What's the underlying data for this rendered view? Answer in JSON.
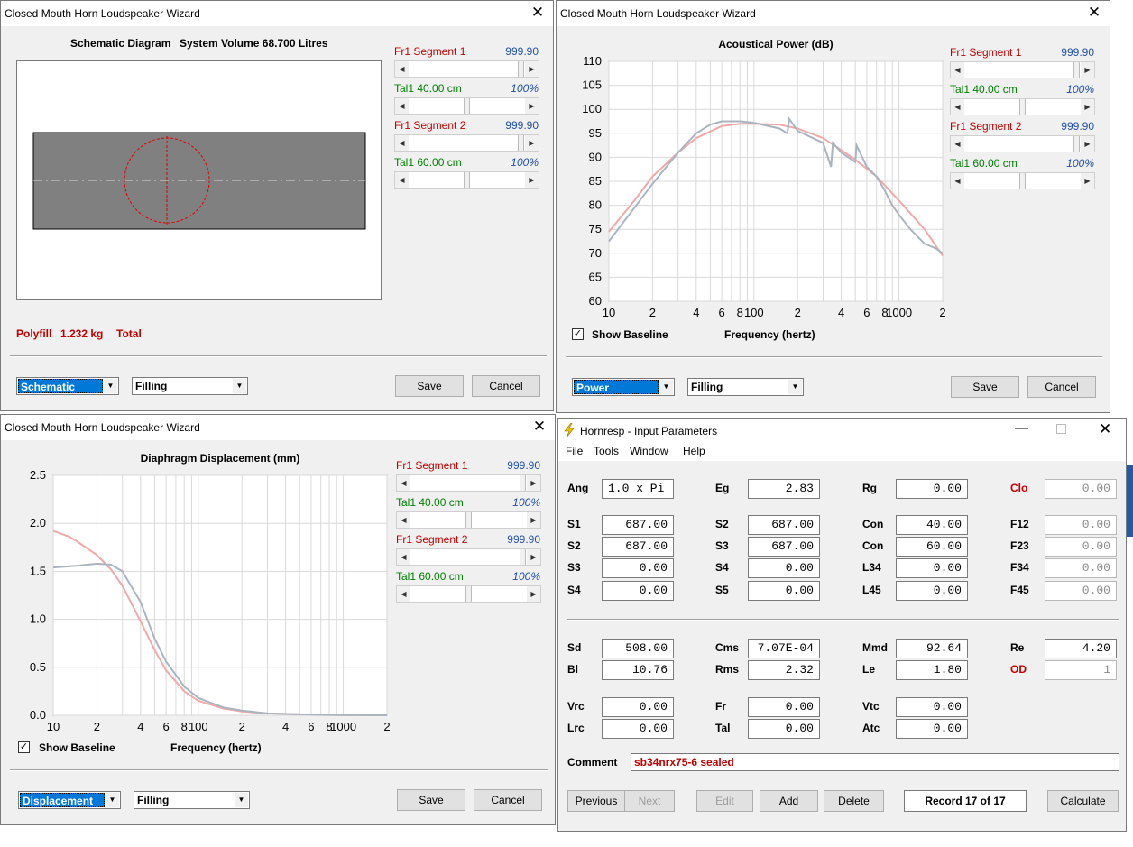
{
  "win1": {
    "title": "Closed Mouth Horn Loudspeaker Wizard",
    "heading_a": "Schematic Diagram",
    "heading_b": "System Volume 68.700 Litres",
    "polyfill_a": "Polyfill",
    "polyfill_b": "1.232 kg",
    "polyfill_c": "Total",
    "view_select": "Schematic",
    "fill_select": "Filling",
    "save": "Save",
    "cancel": "Cancel"
  },
  "sliders": {
    "fr1_a": "Fr1  Segment 1",
    "fr1_v": "999.90",
    "tal1_a": "Tal1  40.00 cm",
    "tal1_v": "100%",
    "fr2_a": "Fr1  Segment 2",
    "fr2_v": "999.90",
    "tal2_a": "Tal1  60.00 cm",
    "tal2_v": "100%"
  },
  "win2": {
    "title": "Closed Mouth Horn Loudspeaker Wizard",
    "show_baseline": "Show Baseline",
    "xaxis": "Frequency (hertz)",
    "view_select": "Power",
    "fill_select": "Filling",
    "save": "Save",
    "cancel": "Cancel"
  },
  "win3": {
    "title": "Closed Mouth Horn Loudspeaker Wizard",
    "show_baseline": "Show Baseline",
    "xaxis": "Frequency (hertz)",
    "view_select": "Displacement",
    "fill_select": "Filling",
    "save": "Save",
    "cancel": "Cancel"
  },
  "chart_data": [
    {
      "type": "line",
      "title": "Acoustical Power (dB)",
      "xlabel": "Frequency (hertz)",
      "ylabel": "",
      "xscale": "log",
      "xlim": [
        10,
        2000
      ],
      "ylim": [
        60,
        110
      ],
      "xticks": [
        "10",
        "2",
        "4",
        "6",
        "8",
        "100",
        "2",
        "4",
        "6",
        "8",
        "1000",
        "2"
      ],
      "yticks": [
        "110",
        "105",
        "100",
        "95",
        "90",
        "85",
        "80",
        "75",
        "70",
        "65",
        "60"
      ],
      "series": [
        {
          "color": "#f0a8a8",
          "x": [
            10,
            15,
            20,
            30,
            40,
            60,
            80,
            100,
            150,
            200,
            300,
            400,
            500,
            700,
            1000,
            1500,
            2000
          ],
          "y": [
            74.5,
            81,
            86,
            91,
            94,
            96.5,
            97,
            97,
            96.8,
            96,
            94,
            91.5,
            89.5,
            86,
            81,
            75,
            69.5
          ]
        },
        {
          "color": "#aab4c0",
          "x": [
            10,
            15,
            20,
            30,
            40,
            50,
            60,
            80,
            100,
            150,
            170,
            175,
            200,
            300,
            340,
            350,
            400,
            500,
            510,
            600,
            700,
            800,
            900,
            1000,
            1200,
            1500,
            1800,
            2000
          ],
          "y": [
            72.5,
            79.5,
            84.5,
            91,
            95,
            96.8,
            97.5,
            97.5,
            97.2,
            96,
            95,
            98,
            95.5,
            93,
            88,
            93,
            91,
            89,
            92.5,
            88,
            86,
            83,
            80,
            78,
            75,
            72,
            71,
            70
          ]
        }
      ]
    },
    {
      "type": "line",
      "title": "Diaphragm Displacement (mm)",
      "xlabel": "Frequency (hertz)",
      "ylabel": "",
      "xscale": "log",
      "xlim": [
        10,
        2000
      ],
      "ylim": [
        0,
        2.5
      ],
      "xticks": [
        "10",
        "2",
        "4",
        "6",
        "8",
        "100",
        "2",
        "4",
        "6",
        "8",
        "1000",
        "2"
      ],
      "yticks": [
        "2.5",
        "2.0",
        "1.5",
        "1.0",
        "0.5",
        "0.0"
      ],
      "series": [
        {
          "color": "#f0a8a8",
          "x": [
            10,
            13,
            15,
            20,
            25,
            30,
            40,
            50,
            60,
            80,
            100,
            150,
            200,
            300,
            500,
            700,
            1000,
            2000
          ],
          "y": [
            1.92,
            1.86,
            1.8,
            1.67,
            1.52,
            1.35,
            0.98,
            0.68,
            0.47,
            0.25,
            0.15,
            0.07,
            0.04,
            0.02,
            0.01,
            0.005,
            0.002,
            0.0
          ]
        },
        {
          "color": "#aab4c0",
          "x": [
            10,
            15,
            20,
            25,
            30,
            40,
            50,
            60,
            80,
            100,
            150,
            200,
            300,
            500,
            700,
            1000,
            2000
          ],
          "y": [
            1.54,
            1.56,
            1.58,
            1.57,
            1.5,
            1.18,
            0.8,
            0.56,
            0.3,
            0.18,
            0.08,
            0.05,
            0.02,
            0.01,
            0.005,
            0.002,
            0.0
          ]
        }
      ]
    }
  ],
  "hornresp": {
    "title": "Hornresp - Input Parameters",
    "menu": [
      "File",
      "Tools",
      "Window",
      "Help"
    ],
    "rows": [
      {
        "l1": "Ang",
        "v1": "1.0 x Pi",
        "l2": "Eg",
        "v2": "2.83",
        "l3": "Rg",
        "v3": "0.00",
        "l4": "Clo",
        "v4": "0.00"
      },
      {
        "l1": "S1",
        "v1": "687.00",
        "l2": "S2",
        "v2": "687.00",
        "l3": "Con",
        "v3": "40.00",
        "l4": "F12",
        "v4": "0.00"
      },
      {
        "l1": "S2",
        "v1": "687.00",
        "l2": "S3",
        "v2": "687.00",
        "l3": "Con",
        "v3": "60.00",
        "l4": "F23",
        "v4": "0.00"
      },
      {
        "l1": "S3",
        "v1": "0.00",
        "l2": "S4",
        "v2": "0.00",
        "l3": "L34",
        "v3": "0.00",
        "l4": "F34",
        "v4": "0.00"
      },
      {
        "l1": "S4",
        "v1": "0.00",
        "l2": "S5",
        "v2": "0.00",
        "l3": "L45",
        "v3": "0.00",
        "l4": "F45",
        "v4": "0.00"
      },
      {
        "l1": "Sd",
        "v1": "508.00",
        "l2": "Cms",
        "v2": "7.07E-04",
        "l3": "Mmd",
        "v3": "92.64",
        "l4": "Re",
        "v4": "4.20"
      },
      {
        "l1": "Bl",
        "v1": "10.76",
        "l2": "Rms",
        "v2": "2.32",
        "l3": "Le",
        "v3": "1.80",
        "l4": "OD",
        "v4": "1"
      },
      {
        "l1": "Vrc",
        "v1": "0.00",
        "l2": "Fr",
        "v2": "0.00",
        "l3": "Vtc",
        "v3": "0.00"
      },
      {
        "l1": "Lrc",
        "v1": "0.00",
        "l2": "Tal",
        "v2": "0.00",
        "l3": "Atc",
        "v3": "0.00"
      }
    ],
    "comment_label": "Comment",
    "comment": "sb34nrx75-6 sealed",
    "buttons": {
      "previous": "Previous",
      "next": "Next",
      "edit": "Edit",
      "add": "Add",
      "delete": "Delete",
      "record": "Record 17 of 17",
      "calculate": "Calculate"
    },
    "colors": {
      "accent_red": "#c00000",
      "select_blue": "#0078d7"
    }
  }
}
